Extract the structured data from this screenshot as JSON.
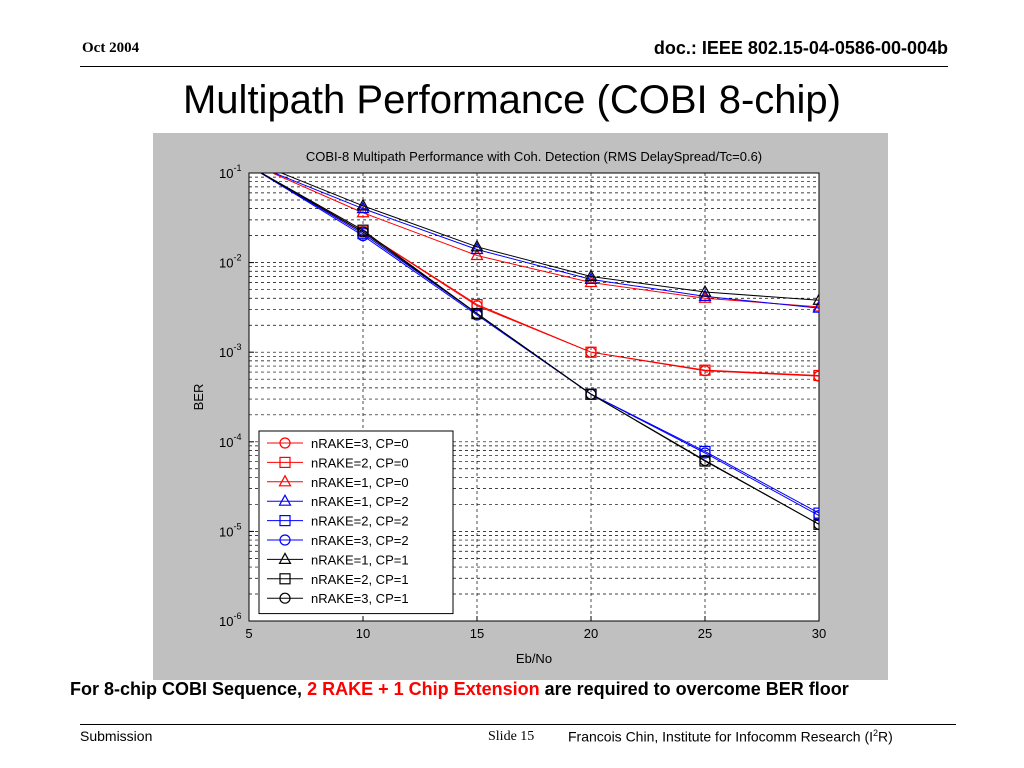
{
  "header": {
    "date": "Oct 2004",
    "doc_id": "doc.: IEEE 802.15-04-0586-00-004b"
  },
  "slide_title": "Multipath Performance (COBI 8-chip)",
  "caption": {
    "lead": "For 8-chip COBI Sequence,",
    "highlight": "2 RAKE + 1 Chip Extension",
    "tail": "are required to overcome BER floor",
    "highlight_color": "#ff0000"
  },
  "footer": {
    "left": "Submission",
    "slide": "Slide 15",
    "right_pre": "Francois Chin, Institute for Infocomm Research (I",
    "right_sup": "2",
    "right_post": "R)"
  },
  "chart_data": {
    "type": "line",
    "title": "COBI-8 Multipath Performance with Coh. Detection (RMS DelaySpread/Tc=0.6)",
    "xlabel": "Eb/No",
    "ylabel": "BER",
    "xlim": [
      5,
      30
    ],
    "ylim": [
      1e-06,
      0.1
    ],
    "yscale": "log",
    "grid": true,
    "x_ticks": [
      "5",
      "10",
      "15",
      "20",
      "25",
      "30"
    ],
    "y_tick_exponents": [
      "-1",
      "-2",
      "-3",
      "-4",
      "-5",
      "-6"
    ],
    "y_tick_base": "10",
    "legend_position": "lower-left",
    "x": [
      5,
      10,
      15,
      20,
      25,
      30
    ],
    "series": [
      {
        "name": "nRAKE=3, CP=0",
        "color": "#ff0000",
        "marker": "circle",
        "values": [
          0.12,
          0.022,
          0.0033,
          0.001,
          0.00062,
          0.00054
        ]
      },
      {
        "name": "nRAKE=2, CP=0",
        "color": "#ff0000",
        "marker": "square",
        "values": [
          0.12,
          0.022,
          0.0034,
          0.001,
          0.00063,
          0.00055
        ]
      },
      {
        "name": "nRAKE=1, CP=0",
        "color": "#ff0000",
        "marker": "triangle",
        "values": [
          0.13,
          0.036,
          0.012,
          0.006,
          0.004,
          0.0032
        ]
      },
      {
        "name": "nRAKE=1, CP=2",
        "color": "#0000ff",
        "marker": "triangle",
        "values": [
          0.13,
          0.04,
          0.014,
          0.0065,
          0.0042,
          0.0031
        ]
      },
      {
        "name": "nRAKE=2, CP=2",
        "color": "#0000ff",
        "marker": "square",
        "values": [
          0.12,
          0.021,
          0.0027,
          0.00034,
          7.8e-05,
          1.6e-05
        ]
      },
      {
        "name": "nRAKE=3, CP=2",
        "color": "#0000ff",
        "marker": "circle",
        "values": [
          0.12,
          0.02,
          0.0026,
          0.00034,
          7.5e-05,
          1.5e-05
        ]
      },
      {
        "name": "nRAKE=1, CP=1",
        "color": "#000000",
        "marker": "triangle",
        "values": [
          0.14,
          0.043,
          0.015,
          0.007,
          0.0047,
          0.0038
        ]
      },
      {
        "name": "nRAKE=2, CP=1",
        "color": "#000000",
        "marker": "square",
        "values": [
          0.12,
          0.023,
          0.0027,
          0.00034,
          6.1e-05,
          1.2e-05
        ]
      },
      {
        "name": "nRAKE=3, CP=1",
        "color": "#000000",
        "marker": "circle",
        "values": [
          0.12,
          0.022,
          0.0027,
          0.00034,
          6.2e-05,
          1.2e-05
        ]
      }
    ]
  }
}
